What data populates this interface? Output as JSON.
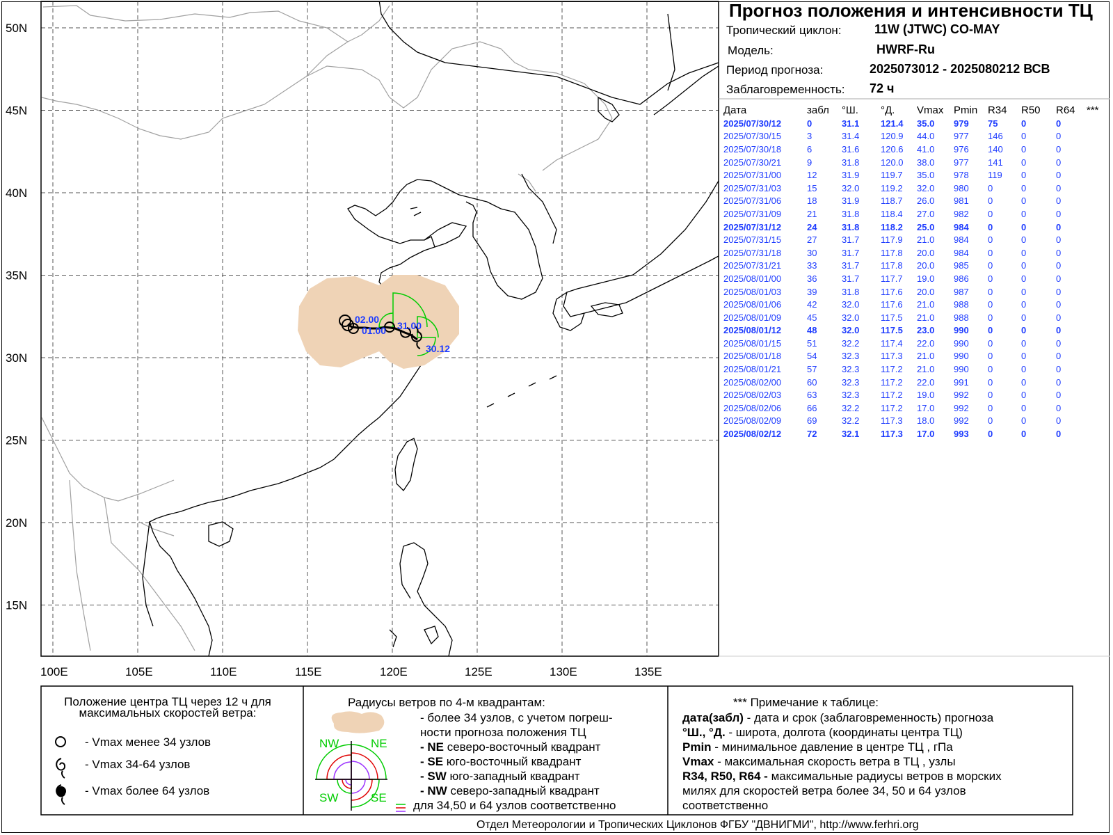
{
  "header": {
    "title": "Прогноз положения и интенсивности ТЦ",
    "cyclone_label": "Тропический циклон:",
    "cyclone_value": "11W (JTWC)  CO-MAY",
    "model_label": "Модель:",
    "model_value": "HWRF-Ru",
    "period_label": "Период прогноза:",
    "period_value": "2025073012 - 2025080212 ВСВ",
    "lead_label": "Заблаговременность:",
    "lead_value": "72 ч"
  },
  "table": {
    "columns": [
      "Дата",
      "забл",
      "°Ш.",
      "°Д.",
      "Vmax",
      "Pmin",
      "R34",
      "R50",
      "R64",
      "***"
    ],
    "rows": [
      {
        "date": "2025/07/30/12",
        "lead": "0",
        "lat": "31.1",
        "lon": "121.4",
        "vmax": "35.0",
        "pmin": "979",
        "r34": "75",
        "r50": "0",
        "r64": "0",
        "bold": true
      },
      {
        "date": "2025/07/30/15",
        "lead": "3",
        "lat": "31.4",
        "lon": "120.9",
        "vmax": "44.0",
        "pmin": "977",
        "r34": "146",
        "r50": "0",
        "r64": "0",
        "bold": false
      },
      {
        "date": "2025/07/30/18",
        "lead": "6",
        "lat": "31.6",
        "lon": "120.6",
        "vmax": "41.0",
        "pmin": "976",
        "r34": "140",
        "r50": "0",
        "r64": "0",
        "bold": false
      },
      {
        "date": "2025/07/30/21",
        "lead": "9",
        "lat": "31.8",
        "lon": "120.0",
        "vmax": "38.0",
        "pmin": "977",
        "r34": "141",
        "r50": "0",
        "r64": "0",
        "bold": false
      },
      {
        "date": "2025/07/31/00",
        "lead": "12",
        "lat": "31.9",
        "lon": "119.7",
        "vmax": "35.0",
        "pmin": "978",
        "r34": "119",
        "r50": "0",
        "r64": "0",
        "bold": false
      },
      {
        "date": "2025/07/31/03",
        "lead": "15",
        "lat": "32.0",
        "lon": "119.2",
        "vmax": "32.0",
        "pmin": "980",
        "r34": "0",
        "r50": "0",
        "r64": "0",
        "bold": false
      },
      {
        "date": "2025/07/31/06",
        "lead": "18",
        "lat": "31.9",
        "lon": "118.7",
        "vmax": "26.0",
        "pmin": "981",
        "r34": "0",
        "r50": "0",
        "r64": "0",
        "bold": false
      },
      {
        "date": "2025/07/31/09",
        "lead": "21",
        "lat": "31.8",
        "lon": "118.4",
        "vmax": "27.0",
        "pmin": "982",
        "r34": "0",
        "r50": "0",
        "r64": "0",
        "bold": false
      },
      {
        "date": "2025/07/31/12",
        "lead": "24",
        "lat": "31.8",
        "lon": "118.2",
        "vmax": "25.0",
        "pmin": "984",
        "r34": "0",
        "r50": "0",
        "r64": "0",
        "bold": true
      },
      {
        "date": "2025/07/31/15",
        "lead": "27",
        "lat": "31.7",
        "lon": "117.9",
        "vmax": "21.0",
        "pmin": "984",
        "r34": "0",
        "r50": "0",
        "r64": "0",
        "bold": false
      },
      {
        "date": "2025/07/31/18",
        "lead": "30",
        "lat": "31.7",
        "lon": "117.8",
        "vmax": "20.0",
        "pmin": "984",
        "r34": "0",
        "r50": "0",
        "r64": "0",
        "bold": false
      },
      {
        "date": "2025/07/31/21",
        "lead": "33",
        "lat": "31.7",
        "lon": "117.8",
        "vmax": "20.0",
        "pmin": "985",
        "r34": "0",
        "r50": "0",
        "r64": "0",
        "bold": false
      },
      {
        "date": "2025/08/01/00",
        "lead": "36",
        "lat": "31.7",
        "lon": "117.7",
        "vmax": "19.0",
        "pmin": "986",
        "r34": "0",
        "r50": "0",
        "r64": "0",
        "bold": false
      },
      {
        "date": "2025/08/01/03",
        "lead": "39",
        "lat": "31.8",
        "lon": "117.6",
        "vmax": "20.0",
        "pmin": "987",
        "r34": "0",
        "r50": "0",
        "r64": "0",
        "bold": false
      },
      {
        "date": "2025/08/01/06",
        "lead": "42",
        "lat": "32.0",
        "lon": "117.6",
        "vmax": "21.0",
        "pmin": "988",
        "r34": "0",
        "r50": "0",
        "r64": "0",
        "bold": false
      },
      {
        "date": "2025/08/01/09",
        "lead": "45",
        "lat": "32.0",
        "lon": "117.5",
        "vmax": "21.0",
        "pmin": "988",
        "r34": "0",
        "r50": "0",
        "r64": "0",
        "bold": false
      },
      {
        "date": "2025/08/01/12",
        "lead": "48",
        "lat": "32.0",
        "lon": "117.5",
        "vmax": "23.0",
        "pmin": "990",
        "r34": "0",
        "r50": "0",
        "r64": "0",
        "bold": true
      },
      {
        "date": "2025/08/01/15",
        "lead": "51",
        "lat": "32.2",
        "lon": "117.4",
        "vmax": "22.0",
        "pmin": "990",
        "r34": "0",
        "r50": "0",
        "r64": "0",
        "bold": false
      },
      {
        "date": "2025/08/01/18",
        "lead": "54",
        "lat": "32.3",
        "lon": "117.3",
        "vmax": "21.0",
        "pmin": "990",
        "r34": "0",
        "r50": "0",
        "r64": "0",
        "bold": false
      },
      {
        "date": "2025/08/01/21",
        "lead": "57",
        "lat": "32.3",
        "lon": "117.2",
        "vmax": "21.0",
        "pmin": "990",
        "r34": "0",
        "r50": "0",
        "r64": "0",
        "bold": false
      },
      {
        "date": "2025/08/02/00",
        "lead": "60",
        "lat": "32.3",
        "lon": "117.2",
        "vmax": "22.0",
        "pmin": "991",
        "r34": "0",
        "r50": "0",
        "r64": "0",
        "bold": false
      },
      {
        "date": "2025/08/02/03",
        "lead": "63",
        "lat": "32.3",
        "lon": "117.2",
        "vmax": "19.0",
        "pmin": "992",
        "r34": "0",
        "r50": "0",
        "r64": "0",
        "bold": false
      },
      {
        "date": "2025/08/02/06",
        "lead": "66",
        "lat": "32.2",
        "lon": "117.2",
        "vmax": "17.0",
        "pmin": "992",
        "r34": "0",
        "r50": "0",
        "r64": "0",
        "bold": false
      },
      {
        "date": "2025/08/02/09",
        "lead": "69",
        "lat": "32.2",
        "lon": "117.3",
        "vmax": "18.0",
        "pmin": "992",
        "r34": "0",
        "r50": "0",
        "r64": "0",
        "bold": false
      },
      {
        "date": "2025/08/02/12",
        "lead": "72",
        "lat": "32.1",
        "lon": "117.3",
        "vmax": "17.0",
        "pmin": "993",
        "r34": "0",
        "r50": "0",
        "r64": "0",
        "bold": true
      }
    ]
  },
  "map": {
    "lat_labels": [
      "50N",
      "45N",
      "40N",
      "35N",
      "30N",
      "25N",
      "20N",
      "15N"
    ],
    "lon_labels": [
      "100E",
      "105E",
      "110E",
      "115E",
      "120E",
      "125E",
      "130E",
      "135E"
    ],
    "track_labels": [
      "02.00",
      "01.00",
      "31.00",
      "30.12"
    ],
    "colors": {
      "uncertainty": "#efd3b6",
      "r34": "#00cc00",
      "labels": "#1e3cff",
      "track": "#000000",
      "coast": "#000000",
      "border": "#a0a0a0",
      "grid": "#555555"
    }
  },
  "legend": {
    "left_title": "Положение центра ТЦ через 12 ч для максимальных скоростей ветра:",
    "left_items": [
      "- Vmax  менее 34 узлов",
      "- Vmax  34-64 узлов",
      "- Vmax  более 64 узлов"
    ],
    "mid_title": "Радиусы ветров по 4-м квадрантам:",
    "mid_lines": [
      {
        "b": "",
        "t": "- более 34 узлов, с учетом погреш-"
      },
      {
        "b": "",
        "t": "  ности прогноза положения ТЦ"
      },
      {
        "b": "- NE",
        "t": "  северо-восточный квадрант"
      },
      {
        "b": "- SE",
        "t": "  юго-восточный квадрант"
      },
      {
        "b": "- SW",
        "t": "  юго-западный квадрант"
      },
      {
        "b": "- NW",
        "t": "  северо-западный квадрант"
      },
      {
        "b": "",
        "t": "для 34,50 и 64 узлов соответственно"
      }
    ],
    "quad_labels": [
      "NW",
      "NE",
      "SW",
      "SE"
    ],
    "right_title": "*** Примечание к таблице:",
    "right_lines": [
      {
        "b": "дата(забл)",
        "t": "  - дата и срок (заблаговременность) прогноза"
      },
      {
        "b": "°Ш., °Д.",
        "t": "  - широта, долгота   (координаты центра ТЦ)"
      },
      {
        "b": "Pmin",
        "t": "   - минимальное давление в центре ТЦ , гПа"
      },
      {
        "b": "Vmax",
        "t": "    -  максимальная скорость ветра в ТЦ , узлы"
      },
      {
        "b": "R34, R50, R64 -",
        "t": "  максимальные радиусы ветров в морских"
      },
      {
        "b": "",
        "t": "милях для скоростей ветра более 34, 50 и 64 узлов"
      },
      {
        "b": "",
        "t": "                         соответственно"
      }
    ]
  },
  "footer": "Отдел Метеорологии и Тропических Циклонов ФГБУ \"ДВНИГМИ\",  http://www.ferhri.org"
}
